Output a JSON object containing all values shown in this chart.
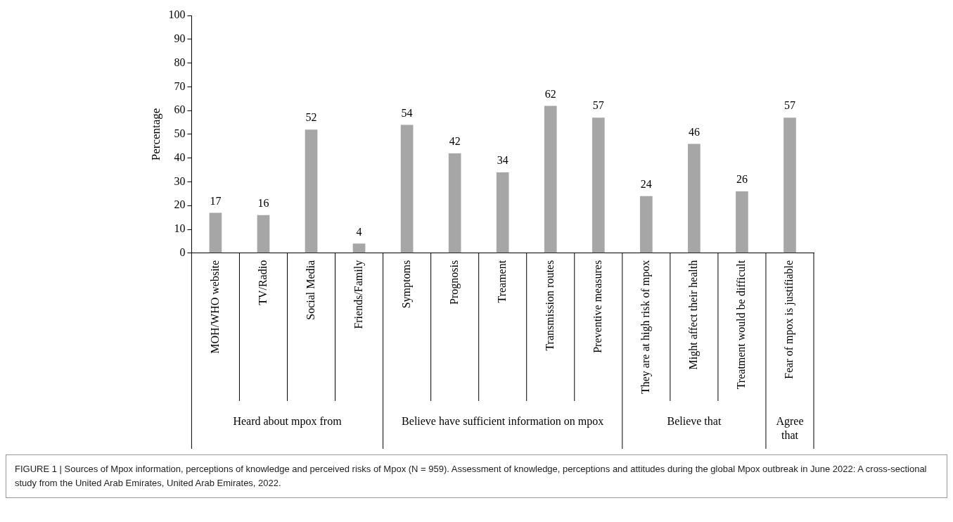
{
  "chart_data": {
    "type": "bar",
    "ylabel": "Percentage",
    "categories": [
      "MOH/WHO website",
      "TV/Radio",
      "Social Media",
      "Friends/Family",
      "Symptoms",
      "Prognosis",
      "Treament",
      "Transmission routes",
      "Preventive measures",
      "They are at high risk of mpox",
      "Might affect their health",
      "Treatment would be difficult",
      "Fear of mpox is justifiable"
    ],
    "values": [
      17,
      16,
      52,
      4,
      54,
      42,
      34,
      62,
      57,
      24,
      46,
      26,
      57
    ],
    "color": "#a6a6a6",
    "ylim": [
      0,
      100
    ],
    "yticks": [
      0,
      10,
      20,
      30,
      40,
      50,
      60,
      70,
      80,
      90,
      100
    ],
    "grid": false,
    "legend": false,
    "data_labels": true,
    "annotations": [
      "Heard about mpox from",
      "Believe have sufficient information on mpox",
      "Believe that",
      "Agree that",
      "FIGURE 1 | Sources of Mpox information, perceptions of knowledge and perceived risks of Mpox (N = 959). Assessment of knowledge, perceptions and attitudes during the global Mpox outbreak in June 2022: A cross-sectional study from the United Arab Emirates, United Arab Emirates, 2022."
    ]
  }
}
